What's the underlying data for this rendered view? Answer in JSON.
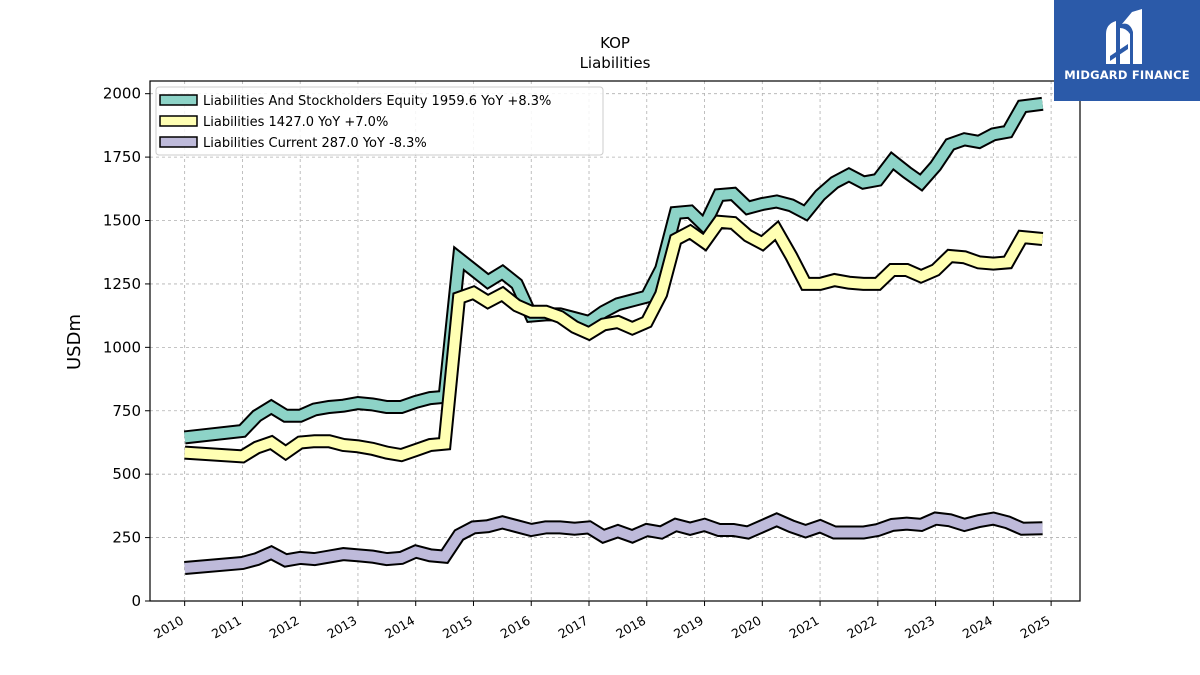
{
  "chart_data": {
    "type": "line",
    "title": "KOP",
    "subtitle": "Liabilities",
    "xlabel": "",
    "ylabel": "USDm",
    "xlim": [
      2009.4,
      2025.5
    ],
    "ylim": [
      0,
      2050
    ],
    "x_ticks": [
      "2010",
      "2011",
      "2012",
      "2013",
      "2014",
      "2015",
      "2016",
      "2017",
      "2018",
      "2019",
      "2020",
      "2021",
      "2022",
      "2023",
      "2024",
      "2025"
    ],
    "y_ticks": [
      "0",
      "250",
      "500",
      "750",
      "1000",
      "1250",
      "1500",
      "1750",
      "2000"
    ],
    "grid": true,
    "legend_position": "top-left",
    "series": [
      {
        "name": "Liabilities And Stockholders Equity",
        "legend_label": "Liabilities And Stockholders Equity  1959.6 YoY +8.3%",
        "color": "#8dd3c7",
        "x": [
          2010.0,
          2011.0,
          2011.25,
          2011.5,
          2011.75,
          2012.0,
          2012.25,
          2012.5,
          2012.75,
          2013.0,
          2013.25,
          2013.5,
          2013.75,
          2014.0,
          2014.25,
          2014.5,
          2014.75,
          2015.0,
          2015.25,
          2015.5,
          2015.75,
          2016.0,
          2016.25,
          2016.5,
          2016.75,
          2017.0,
          2017.25,
          2017.5,
          2017.75,
          2018.0,
          2018.25,
          2018.5,
          2018.75,
          2019.0,
          2019.25,
          2019.5,
          2019.75,
          2020.0,
          2020.25,
          2020.5,
          2020.75,
          2021.0,
          2021.25,
          2021.5,
          2021.75,
          2022.0,
          2022.25,
          2022.5,
          2022.75,
          2023.0,
          2023.25,
          2023.5,
          2023.75,
          2024.0,
          2024.25,
          2024.5,
          2024.85
        ],
        "values": [
          645,
          670,
          730,
          765,
          730,
          730,
          755,
          765,
          770,
          780,
          775,
          765,
          765,
          785,
          800,
          805,
          1350,
          1305,
          1260,
          1295,
          1250,
          1125,
          1130,
          1130,
          1115,
          1100,
          1140,
          1170,
          1185,
          1200,
          1310,
          1530,
          1535,
          1480,
          1600,
          1605,
          1550,
          1565,
          1575,
          1560,
          1530,
          1600,
          1650,
          1680,
          1650,
          1660,
          1735,
          1690,
          1650,
          1715,
          1800,
          1820,
          1810,
          1840,
          1850,
          1950,
          1960
        ]
      },
      {
        "name": "Liabilities",
        "legend_label": "Liabilities  1427.0 YoY +7.0%",
        "color": "#ffffb3",
        "x": [
          2010.0,
          2011.0,
          2011.25,
          2011.5,
          2011.75,
          2012.0,
          2012.25,
          2012.5,
          2012.75,
          2013.0,
          2013.25,
          2013.5,
          2013.75,
          2014.0,
          2014.25,
          2014.5,
          2014.75,
          2015.0,
          2015.25,
          2015.5,
          2015.75,
          2016.0,
          2016.25,
          2016.5,
          2016.75,
          2017.0,
          2017.25,
          2017.5,
          2017.75,
          2018.0,
          2018.25,
          2018.5,
          2018.75,
          2019.0,
          2019.25,
          2019.5,
          2019.75,
          2020.0,
          2020.25,
          2020.5,
          2020.75,
          2021.0,
          2021.25,
          2021.5,
          2021.75,
          2022.0,
          2022.25,
          2022.5,
          2022.75,
          2023.0,
          2023.25,
          2023.5,
          2023.75,
          2024.0,
          2024.25,
          2024.5,
          2024.85
        ],
        "values": [
          585,
          570,
          605,
          625,
          585,
          625,
          630,
          630,
          615,
          610,
          600,
          585,
          575,
          595,
          615,
          620,
          1195,
          1215,
          1180,
          1210,
          1165,
          1140,
          1140,
          1120,
          1080,
          1055,
          1090,
          1100,
          1075,
          1100,
          1210,
          1425,
          1455,
          1415,
          1495,
          1490,
          1440,
          1410,
          1460,
          1360,
          1250,
          1250,
          1265,
          1255,
          1250,
          1250,
          1305,
          1305,
          1280,
          1305,
          1360,
          1355,
          1335,
          1330,
          1335,
          1435,
          1427
        ]
      },
      {
        "name": "Liabilities Current",
        "legend_label": "Liabilities Current  287.0 YoY -8.3%",
        "color": "#bebada",
        "x": [
          2010.0,
          2011.0,
          2011.25,
          2011.5,
          2011.75,
          2012.0,
          2012.25,
          2012.5,
          2012.75,
          2013.0,
          2013.25,
          2013.5,
          2013.75,
          2014.0,
          2014.25,
          2014.5,
          2014.75,
          2015.0,
          2015.25,
          2015.5,
          2015.75,
          2016.0,
          2016.25,
          2016.5,
          2016.75,
          2017.0,
          2017.25,
          2017.5,
          2017.75,
          2018.0,
          2018.25,
          2018.5,
          2018.75,
          2019.0,
          2019.25,
          2019.5,
          2019.75,
          2020.0,
          2020.25,
          2020.5,
          2020.75,
          2021.0,
          2021.25,
          2021.5,
          2021.75,
          2022.0,
          2022.25,
          2022.5,
          2022.75,
          2023.0,
          2023.25,
          2023.5,
          2023.75,
          2024.0,
          2024.25,
          2024.5,
          2024.85
        ],
        "values": [
          130,
          150,
          165,
          190,
          160,
          170,
          165,
          175,
          185,
          180,
          175,
          165,
          170,
          195,
          180,
          175,
          260,
          290,
          295,
          310,
          295,
          280,
          290,
          290,
          285,
          290,
          255,
          275,
          255,
          280,
          270,
          300,
          285,
          300,
          280,
          280,
          270,
          295,
          320,
          295,
          275,
          295,
          270,
          270,
          270,
          280,
          300,
          305,
          300,
          325,
          318,
          300,
          315,
          325,
          310,
          285,
          287
        ]
      }
    ]
  },
  "brand": {
    "name": "MIDGARD FINANCE",
    "background": "#2b5aa9"
  }
}
